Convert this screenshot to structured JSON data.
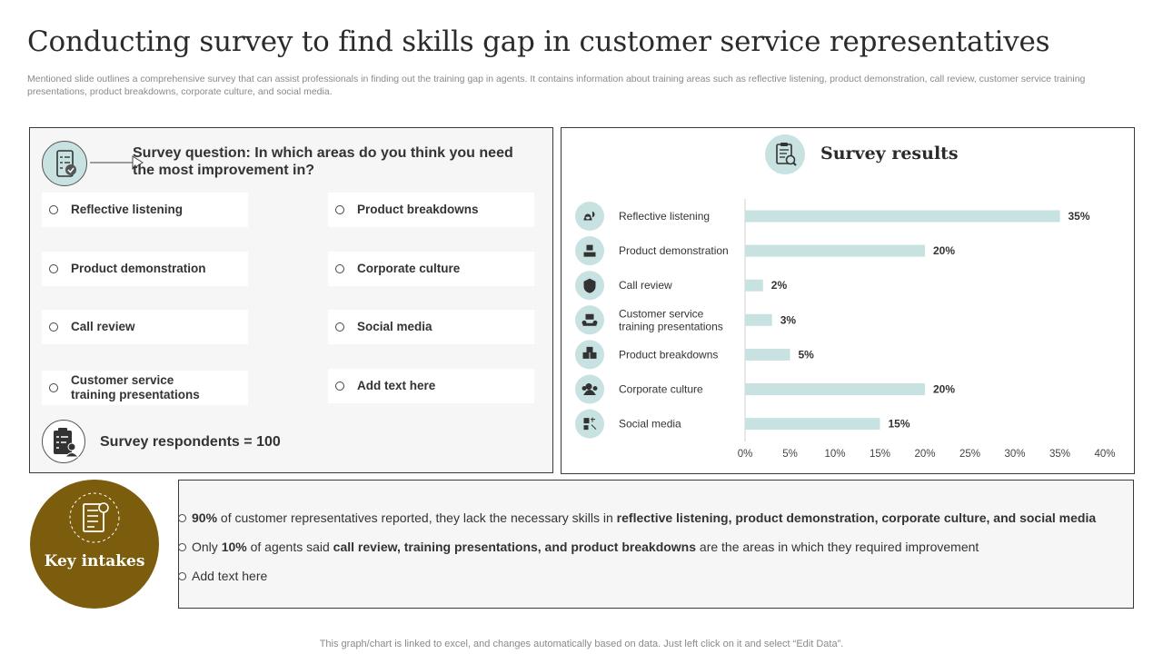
{
  "header": {
    "title": "Conducting survey to find skills gap in customer service representatives",
    "subtitle": "Mentioned slide outlines a comprehensive survey that can assist professionals in finding out the training gap in agents. It contains information about training areas such as reflective listening, product demonstration, call review, customer service training presentations, product breakdowns, corporate culture, and social media."
  },
  "survey": {
    "question": "Survey question: In which areas do you think you need the most improvement in?",
    "options_left": [
      "Reflective listening",
      "Product demonstration",
      "Call review",
      "Customer service training presentations"
    ],
    "options_right": [
      "Product breakdowns",
      "Corporate culture",
      "Social media",
      "Add text here"
    ],
    "respondents": "Survey respondents = 100"
  },
  "results": {
    "title": "Survey results"
  },
  "chart_data": {
    "type": "bar",
    "orientation": "horizontal",
    "categories": [
      "Reflective listening",
      "Product demonstration",
      "Call review",
      "Customer service training presentations",
      "Product breakdowns",
      "Corporate culture",
      "Social media"
    ],
    "values": [
      35,
      20,
      2,
      3,
      5,
      20,
      15
    ],
    "value_labels": [
      "35%",
      "20%",
      "2%",
      "3%",
      "5%",
      "20%",
      "15%"
    ],
    "xlim": [
      0,
      40
    ],
    "x_ticks": [
      "0%",
      "5%",
      "10%",
      "15%",
      "20%",
      "25%",
      "30%",
      "35%",
      "40%"
    ],
    "grid": false,
    "bar_color": "#c7e2e1",
    "icon_color": "#c7e2e1",
    "icons": [
      "listening-icon",
      "demonstration-icon",
      "call-review-icon",
      "presentation-icon",
      "breakdown-icon",
      "culture-icon",
      "social-media-icon"
    ]
  },
  "key_intakes": {
    "title": "Key intakes",
    "bullet1": {
      "pct": "90%",
      "text": " of customer representatives reported, they lack the necessary skills in ",
      "bold": "reflective listening, product demonstration, corporate culture, and social media"
    },
    "bullet2": {
      "pre": "Only ",
      "pct": "10%",
      "text": " of agents said ",
      "bold": "call review, training presentations, and product breakdowns",
      "post": " are the areas in which they required improvement"
    },
    "bullet3": "Add text here",
    "accent_color": "#7b5d0d"
  },
  "footer": "This graph/chart is linked to excel,  and changes automatically based on data. Just left click on it and select “Edit Data”."
}
